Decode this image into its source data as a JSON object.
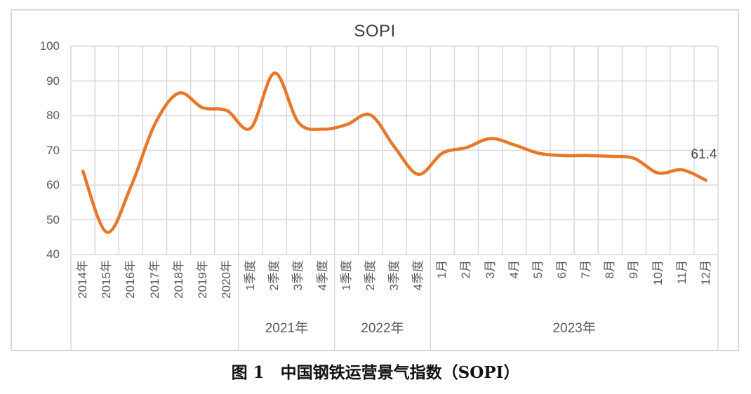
{
  "figure": {
    "caption": "图 1　中国钢铁运营景气指数（SOPI）"
  },
  "chart_data": {
    "type": "line",
    "title": "SOPI",
    "smooth": true,
    "grid": true,
    "legend": "none",
    "ylim": [
      40,
      100
    ],
    "yticks": [
      100,
      90,
      80,
      70,
      60,
      50,
      40
    ],
    "categories": [
      "2014年",
      "2015年",
      "2016年",
      "2017年",
      "2018年",
      "2019年",
      "2020年",
      "1季度",
      "2季度",
      "3季度",
      "4季度",
      "1季度",
      "2季度",
      "3季度",
      "4季度",
      "1月",
      "2月",
      "3月",
      "4月",
      "5月",
      "6月",
      "7月",
      "8月",
      "9月",
      "10月",
      "11月",
      "12月"
    ],
    "category_groups": [
      {
        "label": "",
        "start_index": 0,
        "count": 7
      },
      {
        "label": "2021年",
        "start_index": 7,
        "count": 4
      },
      {
        "label": "2022年",
        "start_index": 11,
        "count": 4
      },
      {
        "label": "2023年",
        "start_index": 15,
        "count": 12
      }
    ],
    "series": [
      {
        "name": "SOPI",
        "values": [
          64,
          46.4,
          59.5,
          77.5,
          86.5,
          82.3,
          81.5,
          76.4,
          92.3,
          78,
          76.1,
          77.4,
          80.2,
          71,
          63.1,
          69.2,
          70.8,
          73.4,
          71.6,
          69.2,
          68.5,
          68.5,
          68.3,
          67.7,
          63.5,
          64.4,
          61.4
        ]
      }
    ],
    "last_point_label": "61.4",
    "colors": {
      "line": "#E8772A",
      "grid": "#D9D9D9",
      "tick_label": "#595959",
      "title": "#404040",
      "data_label": "#3D4453",
      "caption": "#111111"
    }
  }
}
